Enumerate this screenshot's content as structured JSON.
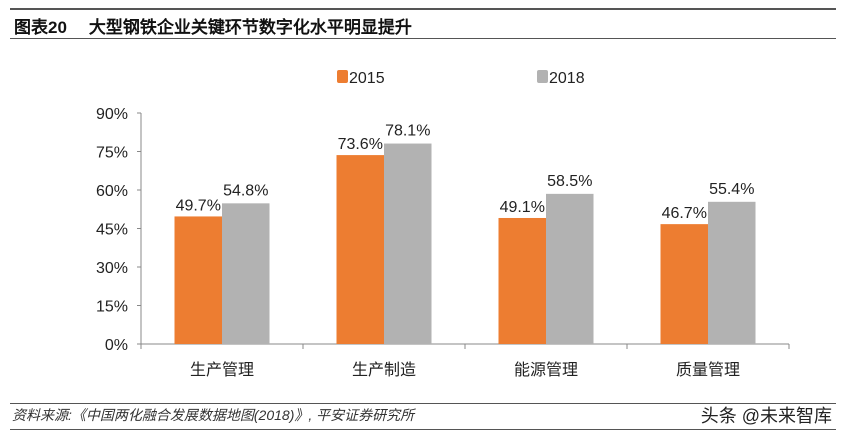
{
  "header": {
    "label": "图表20",
    "title": "大型钢铁企业关键环节数字化水平明显提升"
  },
  "footer": {
    "source": "资料来源:《中国两化融合发展数据地图(2018)》, 平安证券研究所",
    "watermark": "头条 @未来智库"
  },
  "chart_data": {
    "type": "bar",
    "categories": [
      "生产管理",
      "生产制造",
      "能源管理",
      "质量管理"
    ],
    "series": [
      {
        "name": "2015",
        "values": [
          49.7,
          73.6,
          49.1,
          46.7
        ],
        "color": "#ED7D31"
      },
      {
        "name": "2018",
        "values": [
          54.8,
          78.1,
          58.5,
          55.4
        ],
        "color": "#B2B2B2"
      }
    ],
    "data_labels": [
      [
        "49.7%",
        "73.6%",
        "49.1%",
        "46.7%"
      ],
      [
        "54.8%",
        "78.1%",
        "58.5%",
        "55.4%"
      ]
    ],
    "yticks": [
      "0%",
      "15%",
      "30%",
      "45%",
      "60%",
      "75%",
      "90%"
    ],
    "ylim": [
      0,
      90
    ],
    "legend": "top",
    "grid": false
  }
}
